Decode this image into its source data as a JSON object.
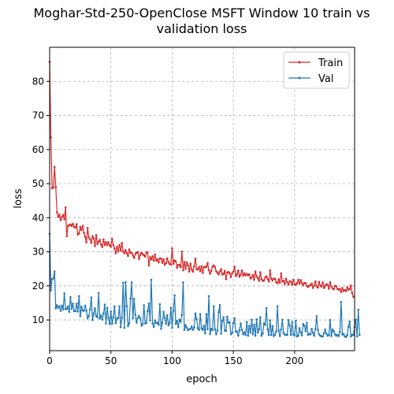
{
  "chart_data": {
    "type": "line",
    "title": [
      "Moghar-Std-250-OpenClose MSFT Window 10 train vs",
      "validation loss"
    ],
    "xlabel": "epoch",
    "ylabel": "loss",
    "xlim": [
      0,
      249
    ],
    "ylim": [
      1,
      90
    ],
    "xticks": [
      0,
      50,
      100,
      150,
      200
    ],
    "yticks": [
      10,
      20,
      30,
      40,
      50,
      60,
      70,
      80
    ],
    "grid": true,
    "legend_position": "top-right",
    "series": [
      {
        "name": "Train",
        "color": "#d62728",
        "values": [
          85.7,
          63.6,
          48.6,
          48.9,
          54.9,
          49.0,
          41.6,
          40.2,
          40.9,
          39.3,
          40.2,
          40.8,
          39.5,
          43.0,
          34.6,
          37.6,
          37.8,
          38.0,
          37.6,
          38.2,
          37.3,
          37.1,
          38.1,
          35.1,
          35.4,
          37.3,
          36.4,
          37.6,
          35.6,
          34.4,
          32.8,
          37.0,
          34.2,
          33.7,
          32.6,
          34.6,
          33.9,
          31.7,
          34.9,
          32.3,
          33.0,
          33.5,
          32.1,
          31.4,
          33.6,
          32.0,
          32.8,
          32.0,
          32.8,
          31.9,
          31.5,
          33.8,
          32.0,
          31.0,
          29.6,
          31.5,
          30.1,
          32.0,
          30.4,
          32.6,
          30.1,
          29.6,
          30.5,
          29.6,
          28.8,
          30.7,
          29.7,
          29.7,
          28.9,
          28.2,
          29.4,
          29.7,
          29.9,
          27.9,
          29.1,
          29.7,
          29.3,
          29.0,
          28.6,
          29.8,
          29.8,
          26.0,
          28.4,
          27.8,
          28.7,
          27.4,
          29.2,
          27.4,
          27.8,
          26.9,
          28.1,
          28.0,
          26.8,
          27.8,
          26.2,
          26.7,
          28.1,
          27.0,
          26.4,
          26.3,
          31.0,
          26.5,
          27.5,
          27.2,
          25.3,
          26.2,
          26.1,
          25.5,
          30.1,
          24.6,
          27.0,
          25.0,
          26.9,
          26.0,
          24.2,
          26.5,
          24.8,
          24.2,
          25.7,
          28.0,
          24.9,
          24.8,
          25.5,
          24.3,
          25.8,
          23.8,
          25.5,
          25.6,
          25.6,
          26.7,
          24.6,
          23.6,
          24.4,
          25.7,
          26.0,
          25.5,
          24.3,
          23.9,
          23.4,
          24.2,
          24.9,
          23.3,
          23.6,
          24.4,
          22.0,
          23.9,
          24.1,
          23.7,
          22.6,
          23.7,
          24.2,
          25.6,
          22.9,
          23.4,
          24.5,
          22.7,
          23.3,
          24.5,
          23.0,
          23.7,
          23.1,
          23.5,
          23.1,
          23.4,
          22.2,
          22.5,
          23.2,
          21.8,
          24.2,
          22.8,
          22.3,
          21.5,
          24.0,
          22.0,
          21.5,
          21.6,
          22.5,
          22.8,
          22.0,
          21.3,
          24.5,
          22.1,
          21.6,
          22.1,
          22.1,
          21.1,
          20.8,
          21.9,
          20.9,
          23.7,
          21.3,
          21.5,
          20.5,
          22.1,
          21.1,
          20.4,
          21.4,
          21.2,
          20.4,
          21.8,
          20.5,
          20.3,
          20.8,
          21.8,
          20.6,
          21.7,
          20.9,
          20.2,
          20.8,
          20.8,
          20.0,
          19.7,
          20.1,
          20.2,
          20.7,
          19.4,
          20.1,
          21.3,
          19.9,
          19.5,
          21.2,
          20.1,
          19.8,
          21.0,
          19.4,
          20.0,
          20.5,
          20.3,
          19.2,
          21.1,
          19.8,
          19.3,
          19.0,
          20.0,
          19.9,
          19.1,
          18.9,
          19.1,
          18.2,
          19.4,
          18.5,
          18.8,
          18.5,
          19.6,
          18.9,
          19.1,
          20.1,
          17.9,
          16.8
        ]
      },
      {
        "name": "Val",
        "color": "#1f77b4",
        "values": [
          35.3,
          18.7,
          22.0,
          22.2,
          24.2,
          13.4,
          14.3,
          13.6,
          14.0,
          12.7,
          14.2,
          13.1,
          17.8,
          13.2,
          13.3,
          14.0,
          12.4,
          16.7,
          13.3,
          14.8,
          12.6,
          12.6,
          14.8,
          12.5,
          17.0,
          11.1,
          13.9,
          12.8,
          12.7,
          14.2,
          12.8,
          10.5,
          11.2,
          13.1,
          16.6,
          10.0,
          11.9,
          13.4,
          11.2,
          10.8,
          17.9,
          10.4,
          11.3,
          10.1,
          11.9,
          14.5,
          9.0,
          13.6,
          10.6,
          8.8,
          12.5,
          8.9,
          10.8,
          14.0,
          9.1,
          10.4,
          10.6,
          14.0,
          7.9,
          10.7,
          20.9,
          7.7,
          21.1,
          14.1,
          8.2,
          9.0,
          16.3,
          21.0,
          10.5,
          16.2,
          11.6,
          9.2,
          10.6,
          11.2,
          10.5,
          8.3,
          8.8,
          14.3,
          9.0,
          9.2,
          12.6,
          14.8,
          9.9,
          21.8,
          9.0,
          8.0,
          9.9,
          9.1,
          9.2,
          8.6,
          14.6,
          7.4,
          9.2,
          12.4,
          10.7,
          8.9,
          11.4,
          8.4,
          9.2,
          13.6,
          7.7,
          12.7,
          17.2,
          8.9,
          9.7,
          7.9,
          10.1,
          9.5,
          11.5,
          21.0,
          7.1,
          8.5,
          7.7,
          7.0,
          7.3,
          7.4,
          8.1,
          7.1,
          7.8,
          11.9,
          10.3,
          7.6,
          7.1,
          11.7,
          7.6,
          7.1,
          8.3,
          6.1,
          11.7,
          7.3,
          17.0,
          5.9,
          7.4,
          7.0,
          14.0,
          7.3,
          5.8,
          6.9,
          12.3,
          14.4,
          6.0,
          9.7,
          10.8,
          6.9,
          6.8,
          11.0,
          9.2,
          9.3,
          5.8,
          6.2,
          9.1,
          10.5,
          6.6,
          6.6,
          5.4,
          7.0,
          9.0,
          7.1,
          5.8,
          6.4,
          5.6,
          9.4,
          5.4,
          8.3,
          6.3,
          10.1,
          5.8,
          8.6,
          5.4,
          10.2,
          6.3,
          7.3,
          10.8,
          5.4,
          6.0,
          9.0,
          8.6,
          13.5,
          7.2,
          5.6,
          9.9,
          5.6,
          8.2,
          5.3,
          5.7,
          6.6,
          14.0,
          6.9,
          5.3,
          7.2,
          10.1,
          6.2,
          5.7,
          5.7,
          5.6,
          10.0,
          8.4,
          5.6,
          9.4,
          5.8,
          5.5,
          9.8,
          5.2,
          5.4,
          7.6,
          6.4,
          5.5,
          8.8,
          8.3,
          6.7,
          9.1,
          5.6,
          5.9,
          5.8,
          7.4,
          6.2,
          5.4,
          7.4,
          11.1,
          7.1,
          5.8,
          5.4,
          5.2,
          5.2,
          6.1,
          7.2,
          6.0,
          5.4,
          5.6,
          10.0,
          5.3,
          7.2,
          6.7,
          5.8,
          5.4,
          5.6,
          5.3,
          6.5,
          15.3,
          5.7,
          5.9,
          5.2,
          5.0,
          5.6,
          8.0,
          9.5,
          5.2,
          5.6,
          5.6,
          7.9,
          10.1,
          5.2,
          13.0,
          5.6
        ]
      }
    ]
  }
}
